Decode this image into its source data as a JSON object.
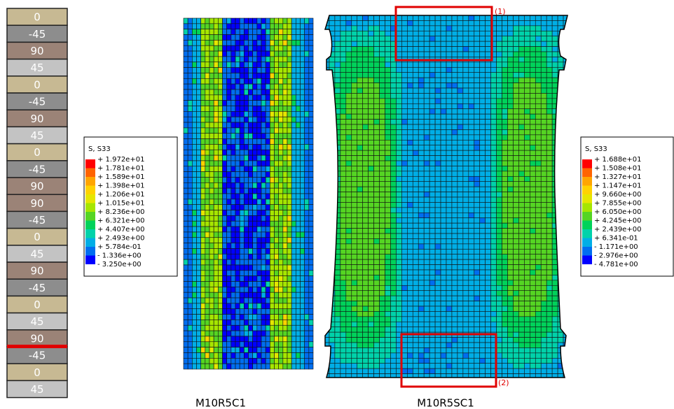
{
  "ply_stack": {
    "layers": [
      "0",
      "-45",
      "90",
      "45",
      "0",
      "-45",
      "90",
      "45",
      "0",
      "-45",
      "90",
      "90",
      "-45",
      "0",
      "45",
      "90",
      "-45",
      "0",
      "45",
      "90",
      "-45",
      "0",
      "45"
    ]
  },
  "legend_left": {
    "title": "S, S33",
    "labels": [
      "+ 1.972e+01",
      "+ 1.781e+01",
      "+ 1.589e+01",
      "+ 1.398e+01",
      "+ 1.206e+01",
      "+ 1.015e+01",
      "+ 8.236e+00",
      "+ 6.321e+00",
      "+ 4.407e+00",
      "+ 2.493e+00",
      "+ 5.784e-01",
      "- 1.336e+00",
      "- 3.250e+00"
    ]
  },
  "legend_right": {
    "title": "S, S33",
    "labels": [
      "+ 1.688e+01",
      "+ 1.508e+01",
      "+ 1.327e+01",
      "+ 1.147e+01",
      "+ 9.660e+00",
      "+ 7.855e+00",
      "+ 6.050e+00",
      "+ 4.245e+00",
      "+ 2.439e+00",
      "+ 6.341e-01",
      "- 1.171e+00",
      "- 2.976e+00",
      "- 4.781e+00"
    ]
  },
  "captions": [
    "M10R5C1",
    "M10R5SC1"
  ],
  "annotations": [
    "(1)",
    "(2)"
  ]
}
